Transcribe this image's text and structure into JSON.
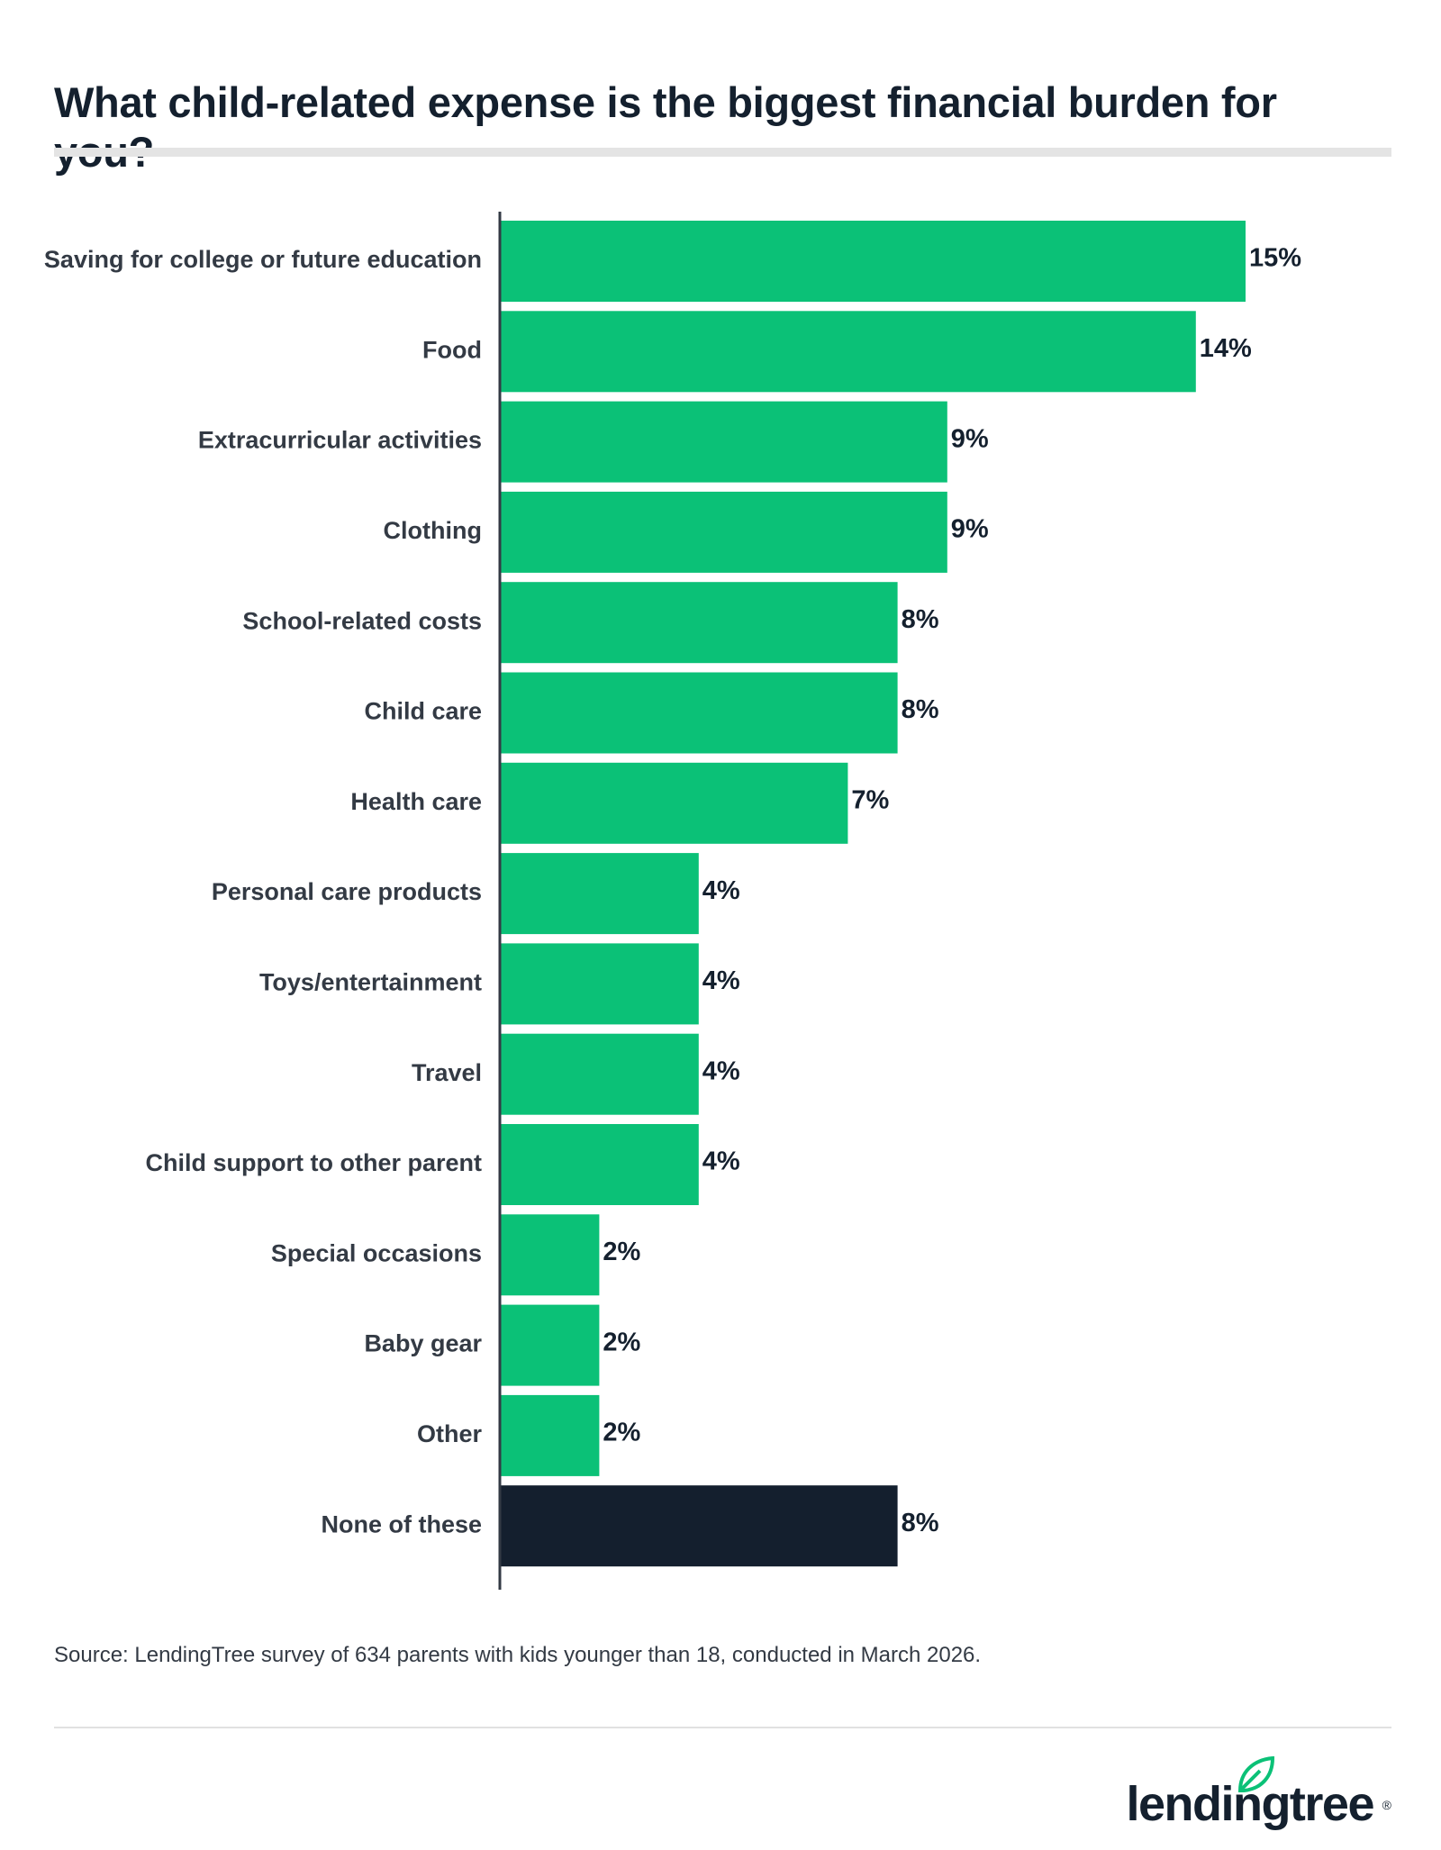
{
  "title": "What child-related expense is the biggest financial burden for you?",
  "source": "Source: LendingTree survey of 634 parents with kids younger than 18, conducted in March 2026.",
  "brand": {
    "name": "lendingtree",
    "reg_mark": "®",
    "logo_icon": "leaf-icon",
    "accent": "#0bc177",
    "dark": "#14202e"
  },
  "chart_data": {
    "type": "bar",
    "orientation": "horizontal",
    "categories": [
      "Saving for college or future education",
      "Food",
      "Extracurricular activities",
      "Clothing",
      "School-related costs",
      "Child care",
      "Health care",
      "Personal care products",
      "Toys/entertainment",
      "Travel",
      "Child support to other parent",
      "Special occasions",
      "Baby gear",
      "Other",
      "None of these"
    ],
    "values": [
      15,
      14,
      9,
      9,
      8,
      8,
      7,
      4,
      4,
      4,
      4,
      2,
      2,
      2,
      8
    ],
    "labels": [
      "15%",
      "14%",
      "9%",
      "9%",
      "8%",
      "8%",
      "7%",
      "4%",
      "4%",
      "4%",
      "4%",
      "2%",
      "2%",
      "2%",
      "8%"
    ],
    "colors": [
      "#0bc177",
      "#0bc177",
      "#0bc177",
      "#0bc177",
      "#0bc177",
      "#0bc177",
      "#0bc177",
      "#0bc177",
      "#0bc177",
      "#0bc177",
      "#0bc177",
      "#0bc177",
      "#0bc177",
      "#0bc177",
      "#141f2e"
    ],
    "xlim": [
      0,
      15
    ],
    "grid": false,
    "legend": "none"
  }
}
